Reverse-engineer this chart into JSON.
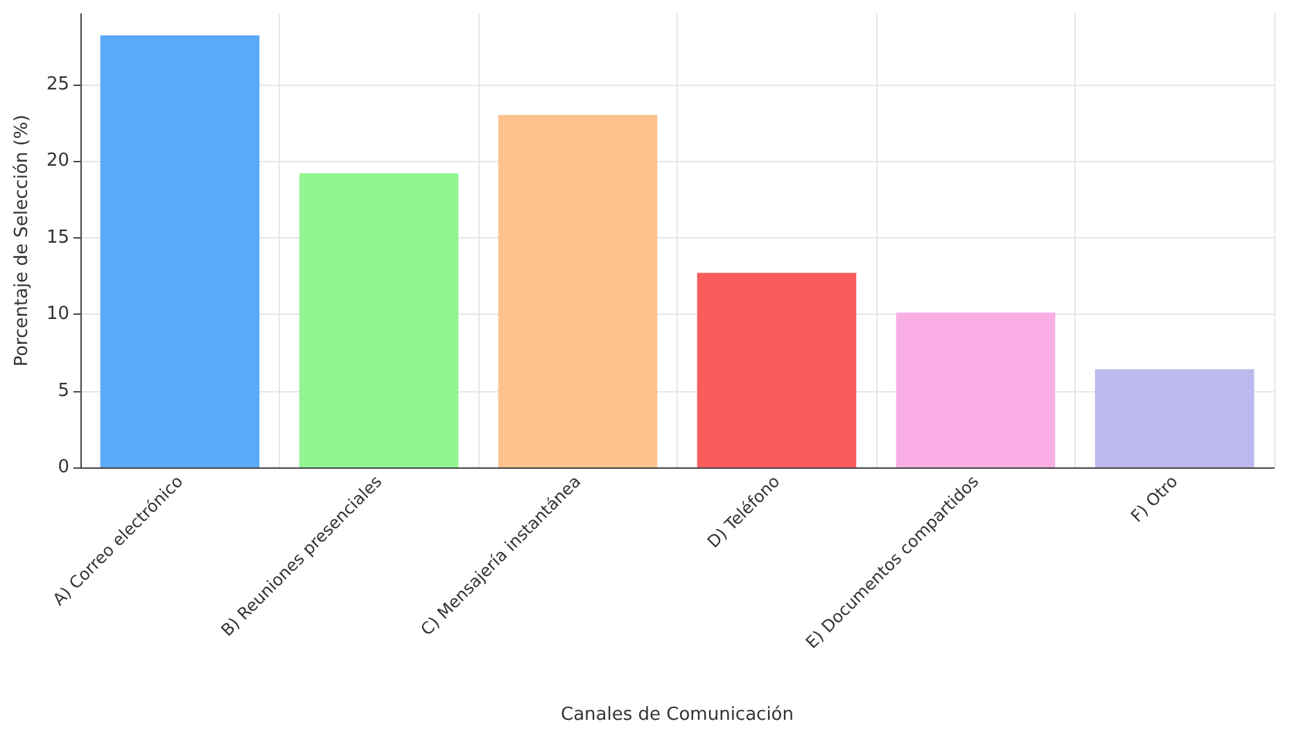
{
  "chart_data": {
    "type": "bar",
    "xlabel": "Canales de Comunicación",
    "ylabel": "Porcentaje de Selección (%)",
    "categories": [
      "A) Correo electrónico",
      "B) Reuniones presenciales",
      "C) Mensajería instantánea",
      "D) Teléfono",
      "E) Documentos compartidos",
      "F) Otro"
    ],
    "values": [
      28.2,
      19.2,
      23.0,
      12.7,
      10.1,
      6.4
    ],
    "colors": [
      "#5aaaf7",
      "#92f592",
      "#fdc28e",
      "#f85c5c",
      "#f9aee6",
      "#bcb9ef"
    ],
    "ylim": [
      0,
      29.6
    ],
    "yticks": [
      0,
      5,
      10,
      15,
      20,
      25
    ],
    "grid": true
  }
}
